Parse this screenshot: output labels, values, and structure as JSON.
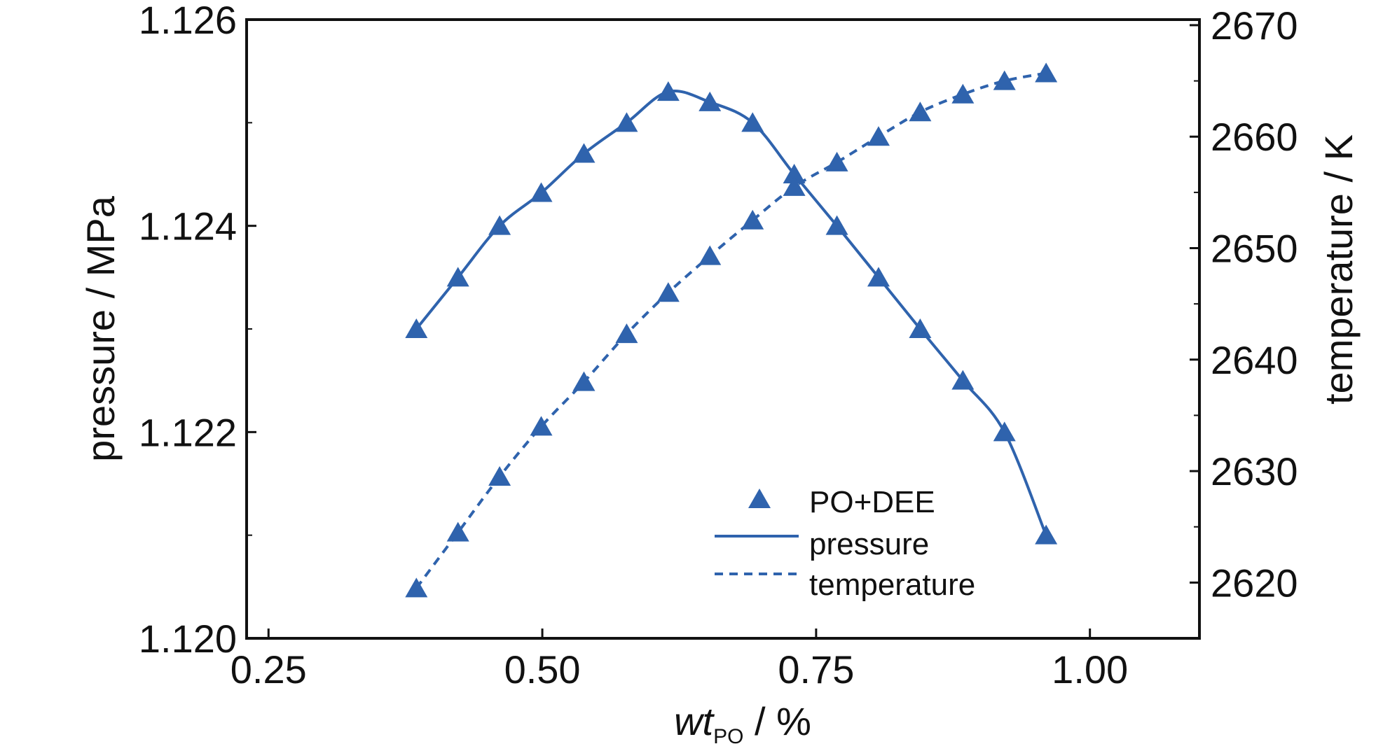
{
  "chart_data": {
    "type": "line",
    "title": "",
    "x": [
      0.385,
      0.423,
      0.461,
      0.499,
      0.538,
      0.577,
      0.615,
      0.653,
      0.692,
      0.73,
      0.769,
      0.807,
      0.845,
      0.884,
      0.922,
      0.96
    ],
    "xlim": [
      0.23,
      1.1
    ],
    "xticks": [
      "0.25",
      "0.50",
      "0.75",
      "1.00"
    ],
    "xtick_values": [
      0.25,
      0.5,
      0.75,
      1.0
    ],
    "xlabel": {
      "main": "wt",
      "sub": "PO",
      "rest": " / %"
    },
    "ylabel_left": "pressure / MPa",
    "ylim_left": [
      1.12,
      1.126
    ],
    "yticks_left": [
      "1.126",
      "1.124",
      "1.122",
      "1.120"
    ],
    "ytick_values_left": [
      1.126,
      1.124,
      1.122,
      1.12
    ],
    "ylabel_right": "temperature / K",
    "ylim_right": [
      2615.0,
      2670.5
    ],
    "yticks_right": [
      "2670",
      "2660",
      "2650",
      "2640",
      "2630",
      "2620"
    ],
    "ytick_values_right": [
      2670,
      2660,
      2650,
      2640,
      2630,
      2620
    ],
    "grid": false,
    "legend_position": "bottom-right",
    "legend": {
      "markers": "PO+DEE",
      "solid": "pressure",
      "dashed": "temperature"
    },
    "series": [
      {
        "name": "pressure",
        "axis": "left",
        "style": "solid",
        "values": [
          1.123,
          1.1235,
          1.124,
          1.12432,
          1.1247,
          1.125,
          1.1253,
          1.1252,
          1.125,
          1.1245,
          1.124,
          1.1235,
          1.123,
          1.1225,
          1.122,
          1.121
        ]
      },
      {
        "name": "temperature",
        "axis": "right",
        "style": "dashed",
        "values": [
          2619.5,
          2624.5,
          2629.5,
          2634.0,
          2638.0,
          2642.3,
          2646.0,
          2649.3,
          2652.5,
          2655.5,
          2657.7,
          2660.0,
          2662.2,
          2663.8,
          2665.0,
          2665.7
        ]
      }
    ],
    "colors": {
      "series": "#2f63ad",
      "axis": "#111111"
    }
  }
}
